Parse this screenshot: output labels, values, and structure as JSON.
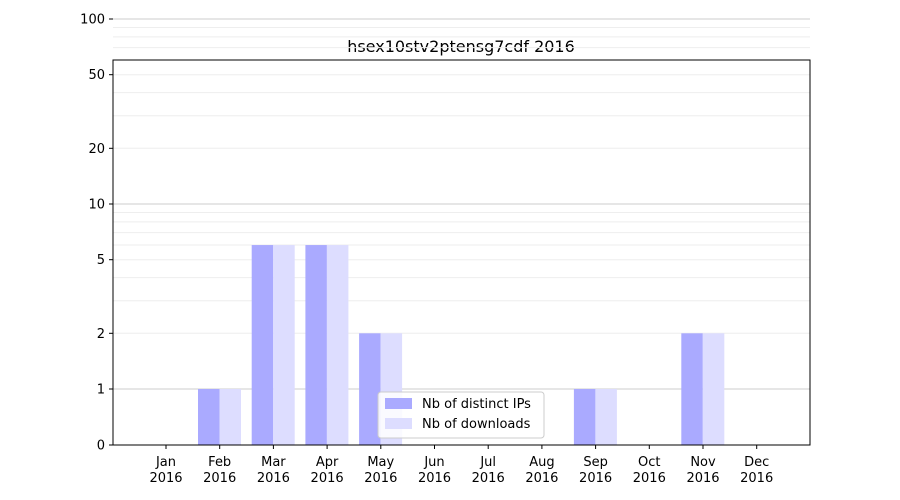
{
  "chart_data": {
    "type": "bar",
    "title": "hsex10stv2ptensg7cdf 2016",
    "xlabel": "",
    "ylabel": "",
    "y_scale": "symlog",
    "ylim": [
      0,
      120
    ],
    "y_ticks": [
      0,
      1,
      2,
      5,
      10,
      20,
      50,
      100
    ],
    "categories": [
      [
        "Jan",
        "2016"
      ],
      [
        "Feb",
        "2016"
      ],
      [
        "Mar",
        "2016"
      ],
      [
        "Apr",
        "2016"
      ],
      [
        "May",
        "2016"
      ],
      [
        "Jun",
        "2016"
      ],
      [
        "Jul",
        "2016"
      ],
      [
        "Aug",
        "2016"
      ],
      [
        "Sep",
        "2016"
      ],
      [
        "Oct",
        "2016"
      ],
      [
        "Nov",
        "2016"
      ],
      [
        "Dec",
        "2016"
      ]
    ],
    "series": [
      {
        "name": "Nb of distinct IPs",
        "color": "#aaaaff",
        "values": [
          0,
          1,
          6,
          6,
          2,
          0,
          0,
          0,
          1,
          0,
          2,
          0
        ]
      },
      {
        "name": "Nb of downloads",
        "color": "#ddddff",
        "values": [
          0,
          1,
          6,
          6,
          2,
          0,
          0,
          0,
          1,
          0,
          2,
          0
        ]
      }
    ],
    "grid": "horizontal",
    "legend_position": "lower-center"
  }
}
